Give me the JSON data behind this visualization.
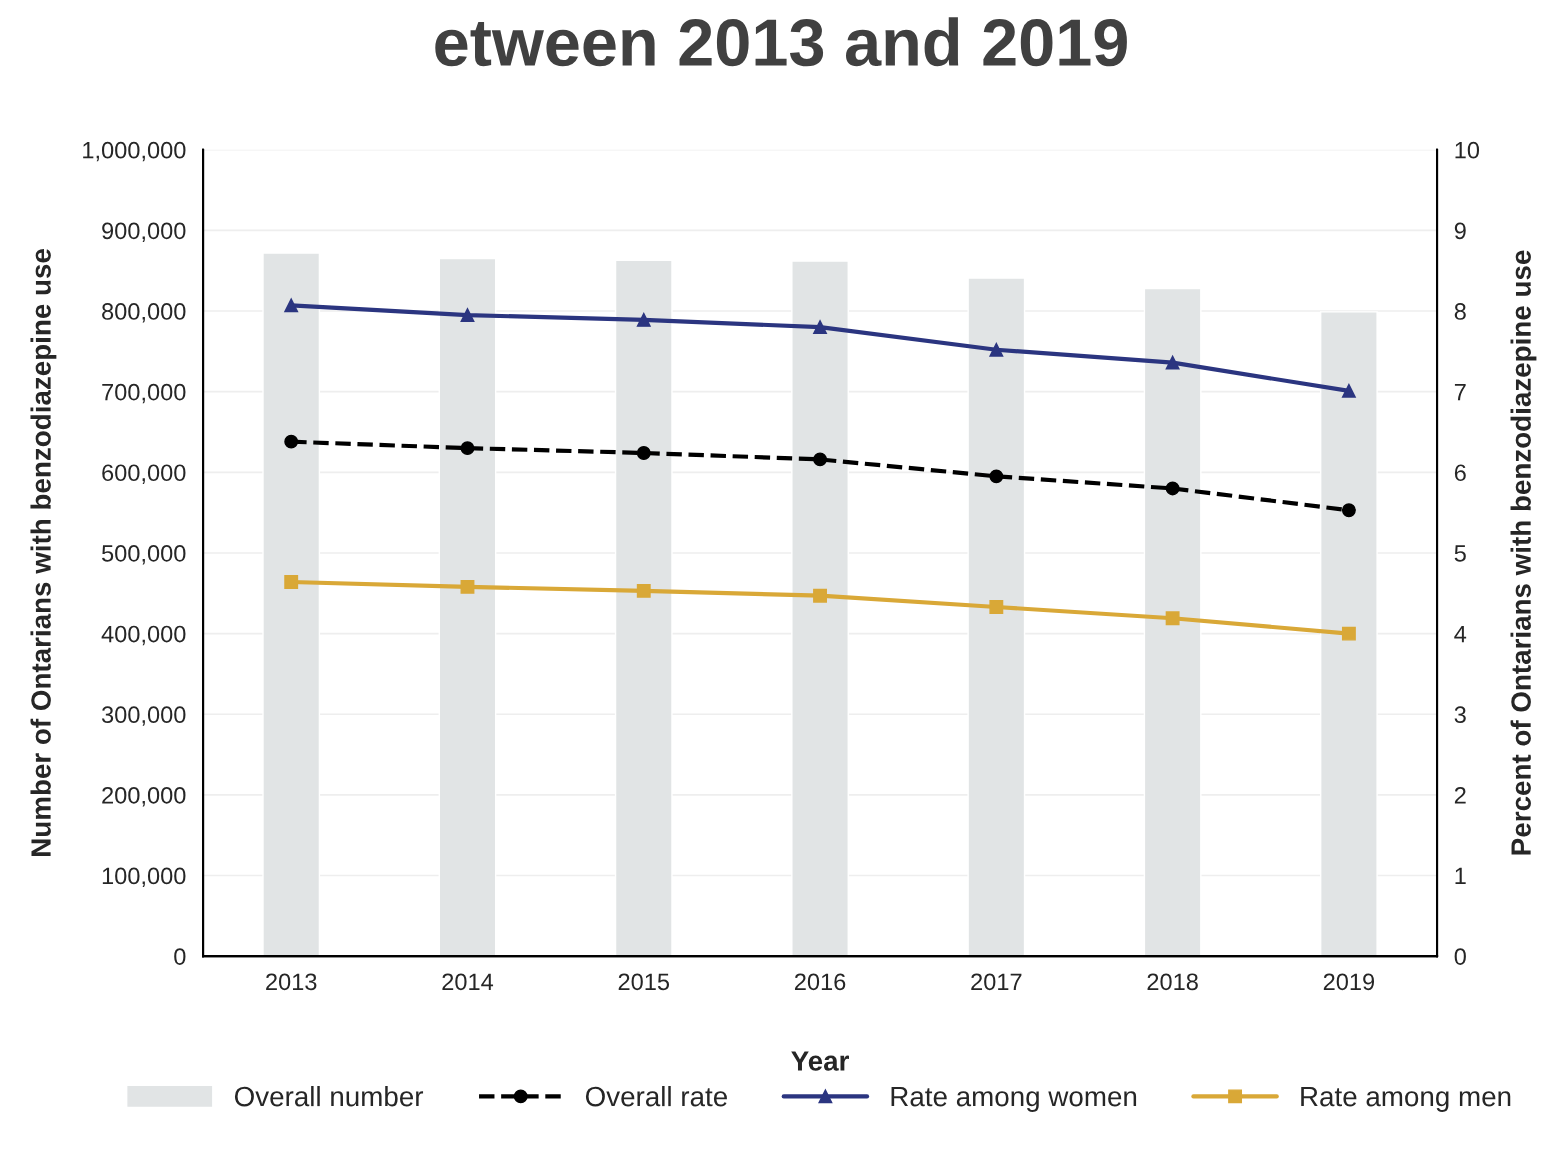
{
  "chart_data": {
    "type": "bar",
    "title": "etween 2013 and 2019",
    "xlabel": "Year",
    "ylabel": "Number of Ontarians with benzodiazepine use",
    "y2label": "Percent of Ontarians with benzodiazepine use",
    "categories": [
      "2013",
      "2014",
      "2015",
      "2016",
      "2017",
      "2018",
      "2019"
    ],
    "series": [
      {
        "name": "Overall number",
        "color": "#e1e4e5",
        "values": [
          872000,
          865000,
          863000,
          862000,
          841000,
          828000,
          799000
        ]
      },
      {
        "name": "Overall rate",
        "type": "line",
        "axis": "y2",
        "color": "#000000",
        "marker": "circle",
        "line_style": "dashed",
        "values": [
          6.38,
          6.3,
          6.24,
          6.16,
          5.95,
          5.8,
          5.53
        ]
      },
      {
        "name": "Rate among women",
        "type": "line",
        "axis": "y2",
        "color": "#2b3580",
        "marker": "triangle",
        "line_style": "solid",
        "values": [
          8.07,
          7.95,
          7.89,
          7.8,
          7.52,
          7.36,
          7.01
        ]
      },
      {
        "name": "Rate among men",
        "type": "line",
        "axis": "y2",
        "color": "#d9a837",
        "marker": "square",
        "line_style": "solid",
        "values": [
          4.64,
          4.58,
          4.53,
          4.47,
          4.33,
          4.19,
          4.0
        ]
      }
    ],
    "ylim": [
      0,
      1000000
    ],
    "yticks": [
      {
        "value": 0,
        "label": "0"
      },
      {
        "value": 100000,
        "label": "100,000"
      },
      {
        "value": 200000,
        "label": "200,000"
      },
      {
        "value": 300000,
        "label": "300,000"
      },
      {
        "value": 400000,
        "label": "400,000"
      },
      {
        "value": 500000,
        "label": "500,000"
      },
      {
        "value": 600000,
        "label": "600,000"
      },
      {
        "value": 700000,
        "label": "700,000"
      },
      {
        "value": 800000,
        "label": "800,000"
      },
      {
        "value": 900000,
        "label": "900,000"
      },
      {
        "value": 1000000,
        "label": "1,000,000"
      }
    ],
    "y2lim": [
      0,
      10
    ],
    "y2ticks": [
      0,
      1,
      2,
      3,
      4,
      5,
      6,
      7,
      8,
      9,
      10
    ],
    "grid": "y",
    "legend": "bottom"
  }
}
